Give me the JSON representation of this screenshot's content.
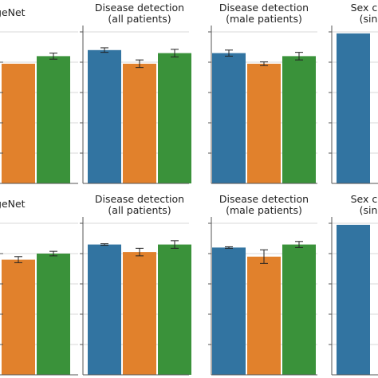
{
  "colors": {
    "blue": "#3274a1",
    "orange": "#e1812c",
    "green": "#3a923a",
    "axis": "#555555",
    "grid": "#cccccc",
    "error_bar": "#222222"
  },
  "chart_data": [
    {
      "type": "bar",
      "title": "ImageNet",
      "title_visible": "nageNet",
      "categories": [
        "bar-1",
        "bar-2",
        "bar-3"
      ],
      "values": [
        0.82,
        0.79,
        0.84
      ],
      "errors": [
        0.0,
        0.0,
        0.02
      ],
      "ylim": [
        0,
        1
      ],
      "grid": true
    },
    {
      "type": "bar",
      "title": "Disease detection\n(all patients)",
      "categories": [
        "bar-1",
        "bar-2",
        "bar-3"
      ],
      "values": [
        0.88,
        0.79,
        0.86
      ],
      "errors": [
        0.015,
        0.025,
        0.025
      ],
      "ylim": [
        0,
        1
      ],
      "grid": true
    },
    {
      "type": "bar",
      "title": "Disease detection\n(male patients)",
      "categories": [
        "bar-1",
        "bar-2",
        "bar-3"
      ],
      "values": [
        0.86,
        0.79,
        0.84
      ],
      "errors": [
        0.02,
        0.012,
        0.025
      ],
      "ylim": [
        0,
        1
      ],
      "grid": true
    },
    {
      "type": "bar",
      "title": "Sex cla\n(sin",
      "categories": [
        "bar-1"
      ],
      "values": [
        0.99
      ],
      "errors": [
        0.0
      ],
      "ylim": [
        0,
        1
      ],
      "grid": true
    },
    {
      "type": "bar",
      "title": "ImageNet",
      "title_visible": "nageNet",
      "categories": [
        "bar-1",
        "bar-2",
        "bar-3"
      ],
      "values": [
        0.8,
        0.76,
        0.8
      ],
      "errors": [
        0.0,
        0.02,
        0.015
      ],
      "ylim": [
        0,
        1
      ],
      "grid": true
    },
    {
      "type": "bar",
      "title": "Disease detection\n(all patients)",
      "categories": [
        "bar-1",
        "bar-2",
        "bar-3"
      ],
      "values": [
        0.86,
        0.81,
        0.86
      ],
      "errors": [
        0.005,
        0.025,
        0.025
      ],
      "ylim": [
        0,
        1
      ],
      "grid": true
    },
    {
      "type": "bar",
      "title": "Disease detection\n(male patients)",
      "categories": [
        "bar-1",
        "bar-2",
        "bar-3"
      ],
      "values": [
        0.84,
        0.78,
        0.86
      ],
      "errors": [
        0.005,
        0.045,
        0.02
      ],
      "ylim": [
        0,
        1
      ],
      "grid": true
    },
    {
      "type": "bar",
      "title": "Sex cla\n(sin",
      "categories": [
        "bar-1"
      ],
      "values": [
        0.99
      ],
      "errors": [
        0.0
      ],
      "ylim": [
        0,
        1
      ],
      "grid": true
    }
  ]
}
